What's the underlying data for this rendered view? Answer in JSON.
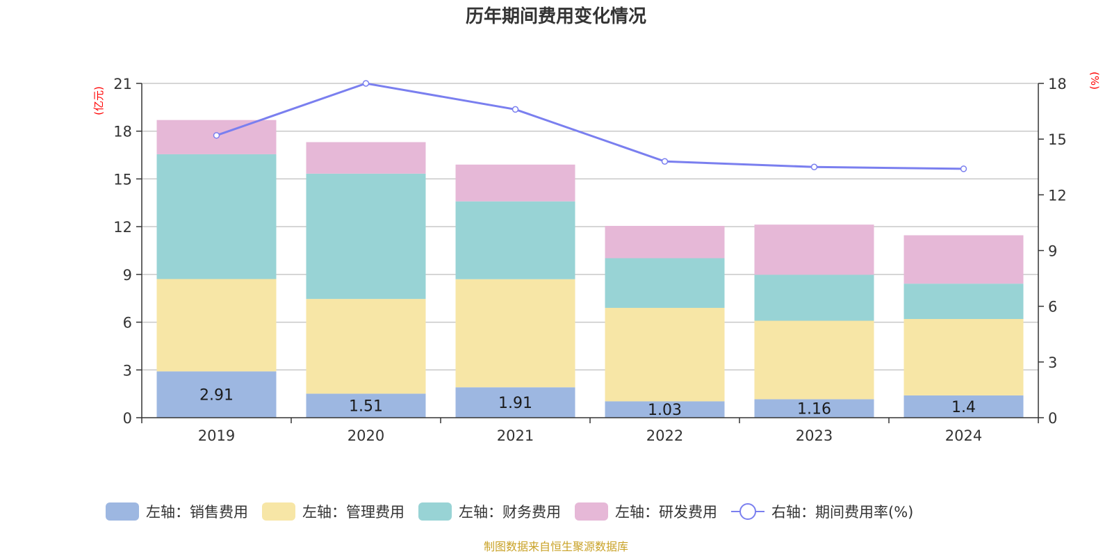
{
  "colors": {
    "sales": "#9db7e1",
    "admin": "#f7e6a6",
    "finance": "#98d3d5",
    "rd": "#e6b8d7",
    "rate": "#7a7fef",
    "unit": "#ff0000",
    "source": "#c9a227"
  },
  "chart_data": {
    "type": "bar",
    "stacked": true,
    "title": "历年期间费用变化情况",
    "source": "制图数据来自恒生聚源数据库",
    "y_left_unit": "(亿元)",
    "y_right_unit": "(%)",
    "categories": [
      "2019",
      "2020",
      "2021",
      "2022",
      "2023",
      "2024"
    ],
    "y_left": {
      "min": 0,
      "max": 21,
      "ticks": [
        "0",
        "3",
        "6",
        "9",
        "12",
        "15",
        "18",
        "21"
      ]
    },
    "y_right": {
      "min": 0,
      "max": 18,
      "ticks": [
        "0",
        "3",
        "6",
        "9",
        "12",
        "15",
        "18"
      ]
    },
    "series": [
      {
        "key": "sales",
        "name": "左轴：销售费用",
        "axis": "left",
        "values": [
          2.91,
          1.51,
          1.91,
          1.03,
          1.16,
          1.4
        ],
        "labels": [
          "2.91",
          "1.51",
          "1.91",
          "1.03",
          "1.16",
          "1.4"
        ]
      },
      {
        "key": "admin",
        "name": "左轴：管理费用",
        "axis": "left",
        "values": [
          5.8,
          5.95,
          6.79,
          5.87,
          4.93,
          4.8
        ]
      },
      {
        "key": "finance",
        "name": "左轴：财务费用",
        "axis": "left",
        "values": [
          7.84,
          7.87,
          4.89,
          3.12,
          2.89,
          2.22
        ]
      },
      {
        "key": "rd",
        "name": "左轴：研发费用",
        "axis": "left",
        "values": [
          2.15,
          1.98,
          2.31,
          2.03,
          3.15,
          3.04
        ]
      },
      {
        "key": "rate",
        "name": "右轴：期间费用率(%)",
        "axis": "right",
        "type": "line",
        "values": [
          15.2,
          18.0,
          16.6,
          13.8,
          13.5,
          13.4
        ]
      }
    ]
  }
}
